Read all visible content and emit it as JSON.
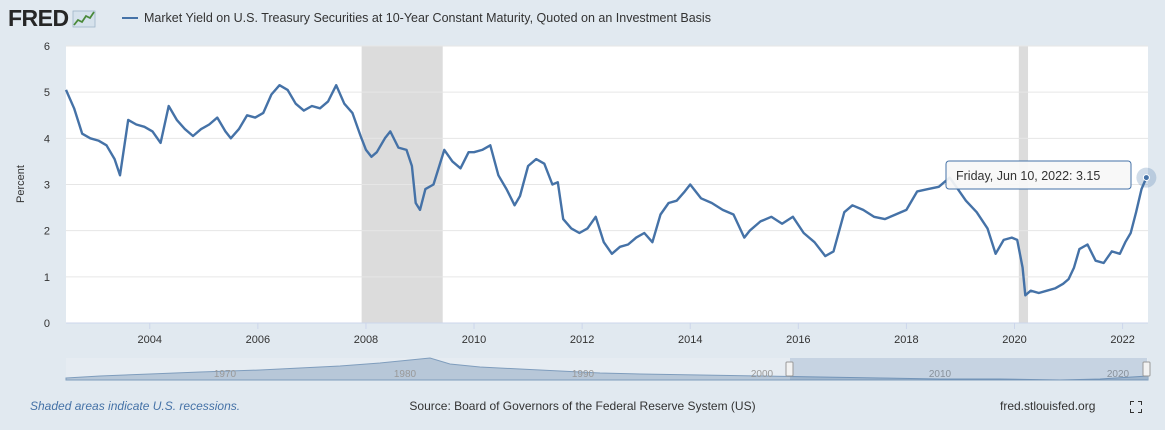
{
  "header": {
    "logo_text": "FRED",
    "legend_label": "Market Yield on U.S. Treasury Securities at 10-Year Constant Maturity, Quoted on an Investment Basis"
  },
  "colors": {
    "series": "#4572a7",
    "recession": "#dcdcdc",
    "background": "#e1e9f0",
    "plot": "#ffffff"
  },
  "tooltip": {
    "label": "Friday, Jun 10, 2022: ",
    "value": "3.15"
  },
  "footer": {
    "note": "Shaded areas indicate U.S. recessions.",
    "source": "Source: Board of Governors of the Federal Reserve System (US)",
    "site": "fred.stlouisfed.org"
  },
  "navigator": {
    "labels": [
      "1970",
      "1980",
      "1990",
      "2000",
      "2010",
      "2020"
    ]
  },
  "chart_data": {
    "type": "line",
    "title": "",
    "xlabel": "",
    "ylabel": "Percent",
    "xlim": [
      2002.45,
      2022.47
    ],
    "ylim": [
      0,
      6
    ],
    "yticks": [
      0,
      1,
      2,
      3,
      4,
      5,
      6
    ],
    "xticks": [
      "2004",
      "2006",
      "2008",
      "2010",
      "2012",
      "2014",
      "2016",
      "2018",
      "2020",
      "2022"
    ],
    "grid": true,
    "legend": "top-left",
    "recessions": [
      [
        2007.92,
        2009.42
      ],
      [
        2020.08,
        2020.25
      ]
    ],
    "series": [
      {
        "name": "Market Yield on U.S. Treasury Securities at 10-Year Constant Maturity, Quoted on an Investment Basis",
        "x": [
          2002.45,
          2002.6,
          2002.75,
          2002.9,
          2003.05,
          2003.2,
          2003.35,
          2003.45,
          2003.6,
          2003.75,
          2003.9,
          2004.05,
          2004.2,
          2004.35,
          2004.5,
          2004.65,
          2004.8,
          2004.95,
          2005.1,
          2005.25,
          2005.4,
          2005.5,
          2005.65,
          2005.8,
          2005.95,
          2006.1,
          2006.25,
          2006.4,
          2006.55,
          2006.7,
          2006.85,
          2007.0,
          2007.15,
          2007.3,
          2007.45,
          2007.6,
          2007.75,
          2007.9,
          2008.0,
          2008.1,
          2008.2,
          2008.35,
          2008.45,
          2008.6,
          2008.75,
          2008.85,
          2008.92,
          2009.0,
          2009.1,
          2009.25,
          2009.45,
          2009.6,
          2009.75,
          2009.9,
          2010.0,
          2010.15,
          2010.3,
          2010.45,
          2010.6,
          2010.75,
          2010.85,
          2011.0,
          2011.15,
          2011.3,
          2011.45,
          2011.55,
          2011.65,
          2011.8,
          2011.95,
          2012.1,
          2012.25,
          2012.4,
          2012.55,
          2012.7,
          2012.85,
          2013.0,
          2013.15,
          2013.3,
          2013.45,
          2013.6,
          2013.75,
          2013.9,
          2014.0,
          2014.2,
          2014.4,
          2014.6,
          2014.8,
          2015.0,
          2015.1,
          2015.3,
          2015.5,
          2015.7,
          2015.9,
          2016.1,
          2016.3,
          2016.5,
          2016.65,
          2016.85,
          2017.0,
          2017.2,
          2017.4,
          2017.6,
          2017.8,
          2018.0,
          2018.2,
          2018.4,
          2018.6,
          2018.8,
          2018.95,
          2019.1,
          2019.3,
          2019.5,
          2019.65,
          2019.8,
          2019.95,
          2020.05,
          2020.15,
          2020.2,
          2020.3,
          2020.45,
          2020.6,
          2020.75,
          2020.9,
          2021.0,
          2021.1,
          2021.2,
          2021.35,
          2021.5,
          2021.65,
          2021.8,
          2021.95,
          2022.05,
          2022.15,
          2022.25,
          2022.35,
          2022.44
        ],
        "values": [
          5.05,
          4.65,
          4.1,
          4.0,
          3.95,
          3.85,
          3.55,
          3.2,
          4.4,
          4.3,
          4.25,
          4.15,
          3.9,
          4.7,
          4.4,
          4.2,
          4.05,
          4.2,
          4.3,
          4.45,
          4.15,
          4.0,
          4.2,
          4.5,
          4.45,
          4.55,
          4.95,
          5.15,
          5.05,
          4.75,
          4.6,
          4.7,
          4.65,
          4.8,
          5.15,
          4.75,
          4.55,
          4.05,
          3.75,
          3.6,
          3.7,
          4.0,
          4.15,
          3.8,
          3.75,
          3.4,
          2.6,
          2.45,
          2.9,
          3.0,
          3.75,
          3.5,
          3.35,
          3.7,
          3.7,
          3.75,
          3.85,
          3.2,
          2.9,
          2.55,
          2.75,
          3.4,
          3.55,
          3.45,
          3.0,
          3.05,
          2.25,
          2.05,
          1.95,
          2.05,
          2.3,
          1.75,
          1.5,
          1.65,
          1.7,
          1.85,
          1.95,
          1.75,
          2.35,
          2.6,
          2.65,
          2.85,
          3.0,
          2.7,
          2.6,
          2.45,
          2.35,
          1.85,
          2.0,
          2.2,
          2.3,
          2.15,
          2.3,
          1.95,
          1.75,
          1.45,
          1.55,
          2.4,
          2.55,
          2.45,
          2.3,
          2.25,
          2.35,
          2.45,
          2.85,
          2.9,
          2.95,
          3.15,
          2.9,
          2.65,
          2.4,
          2.05,
          1.5,
          1.8,
          1.85,
          1.8,
          1.2,
          0.6,
          0.7,
          0.65,
          0.7,
          0.75,
          0.85,
          0.95,
          1.2,
          1.6,
          1.7,
          1.35,
          1.3,
          1.55,
          1.5,
          1.75,
          1.95,
          2.4,
          2.9,
          3.15
        ]
      }
    ]
  }
}
